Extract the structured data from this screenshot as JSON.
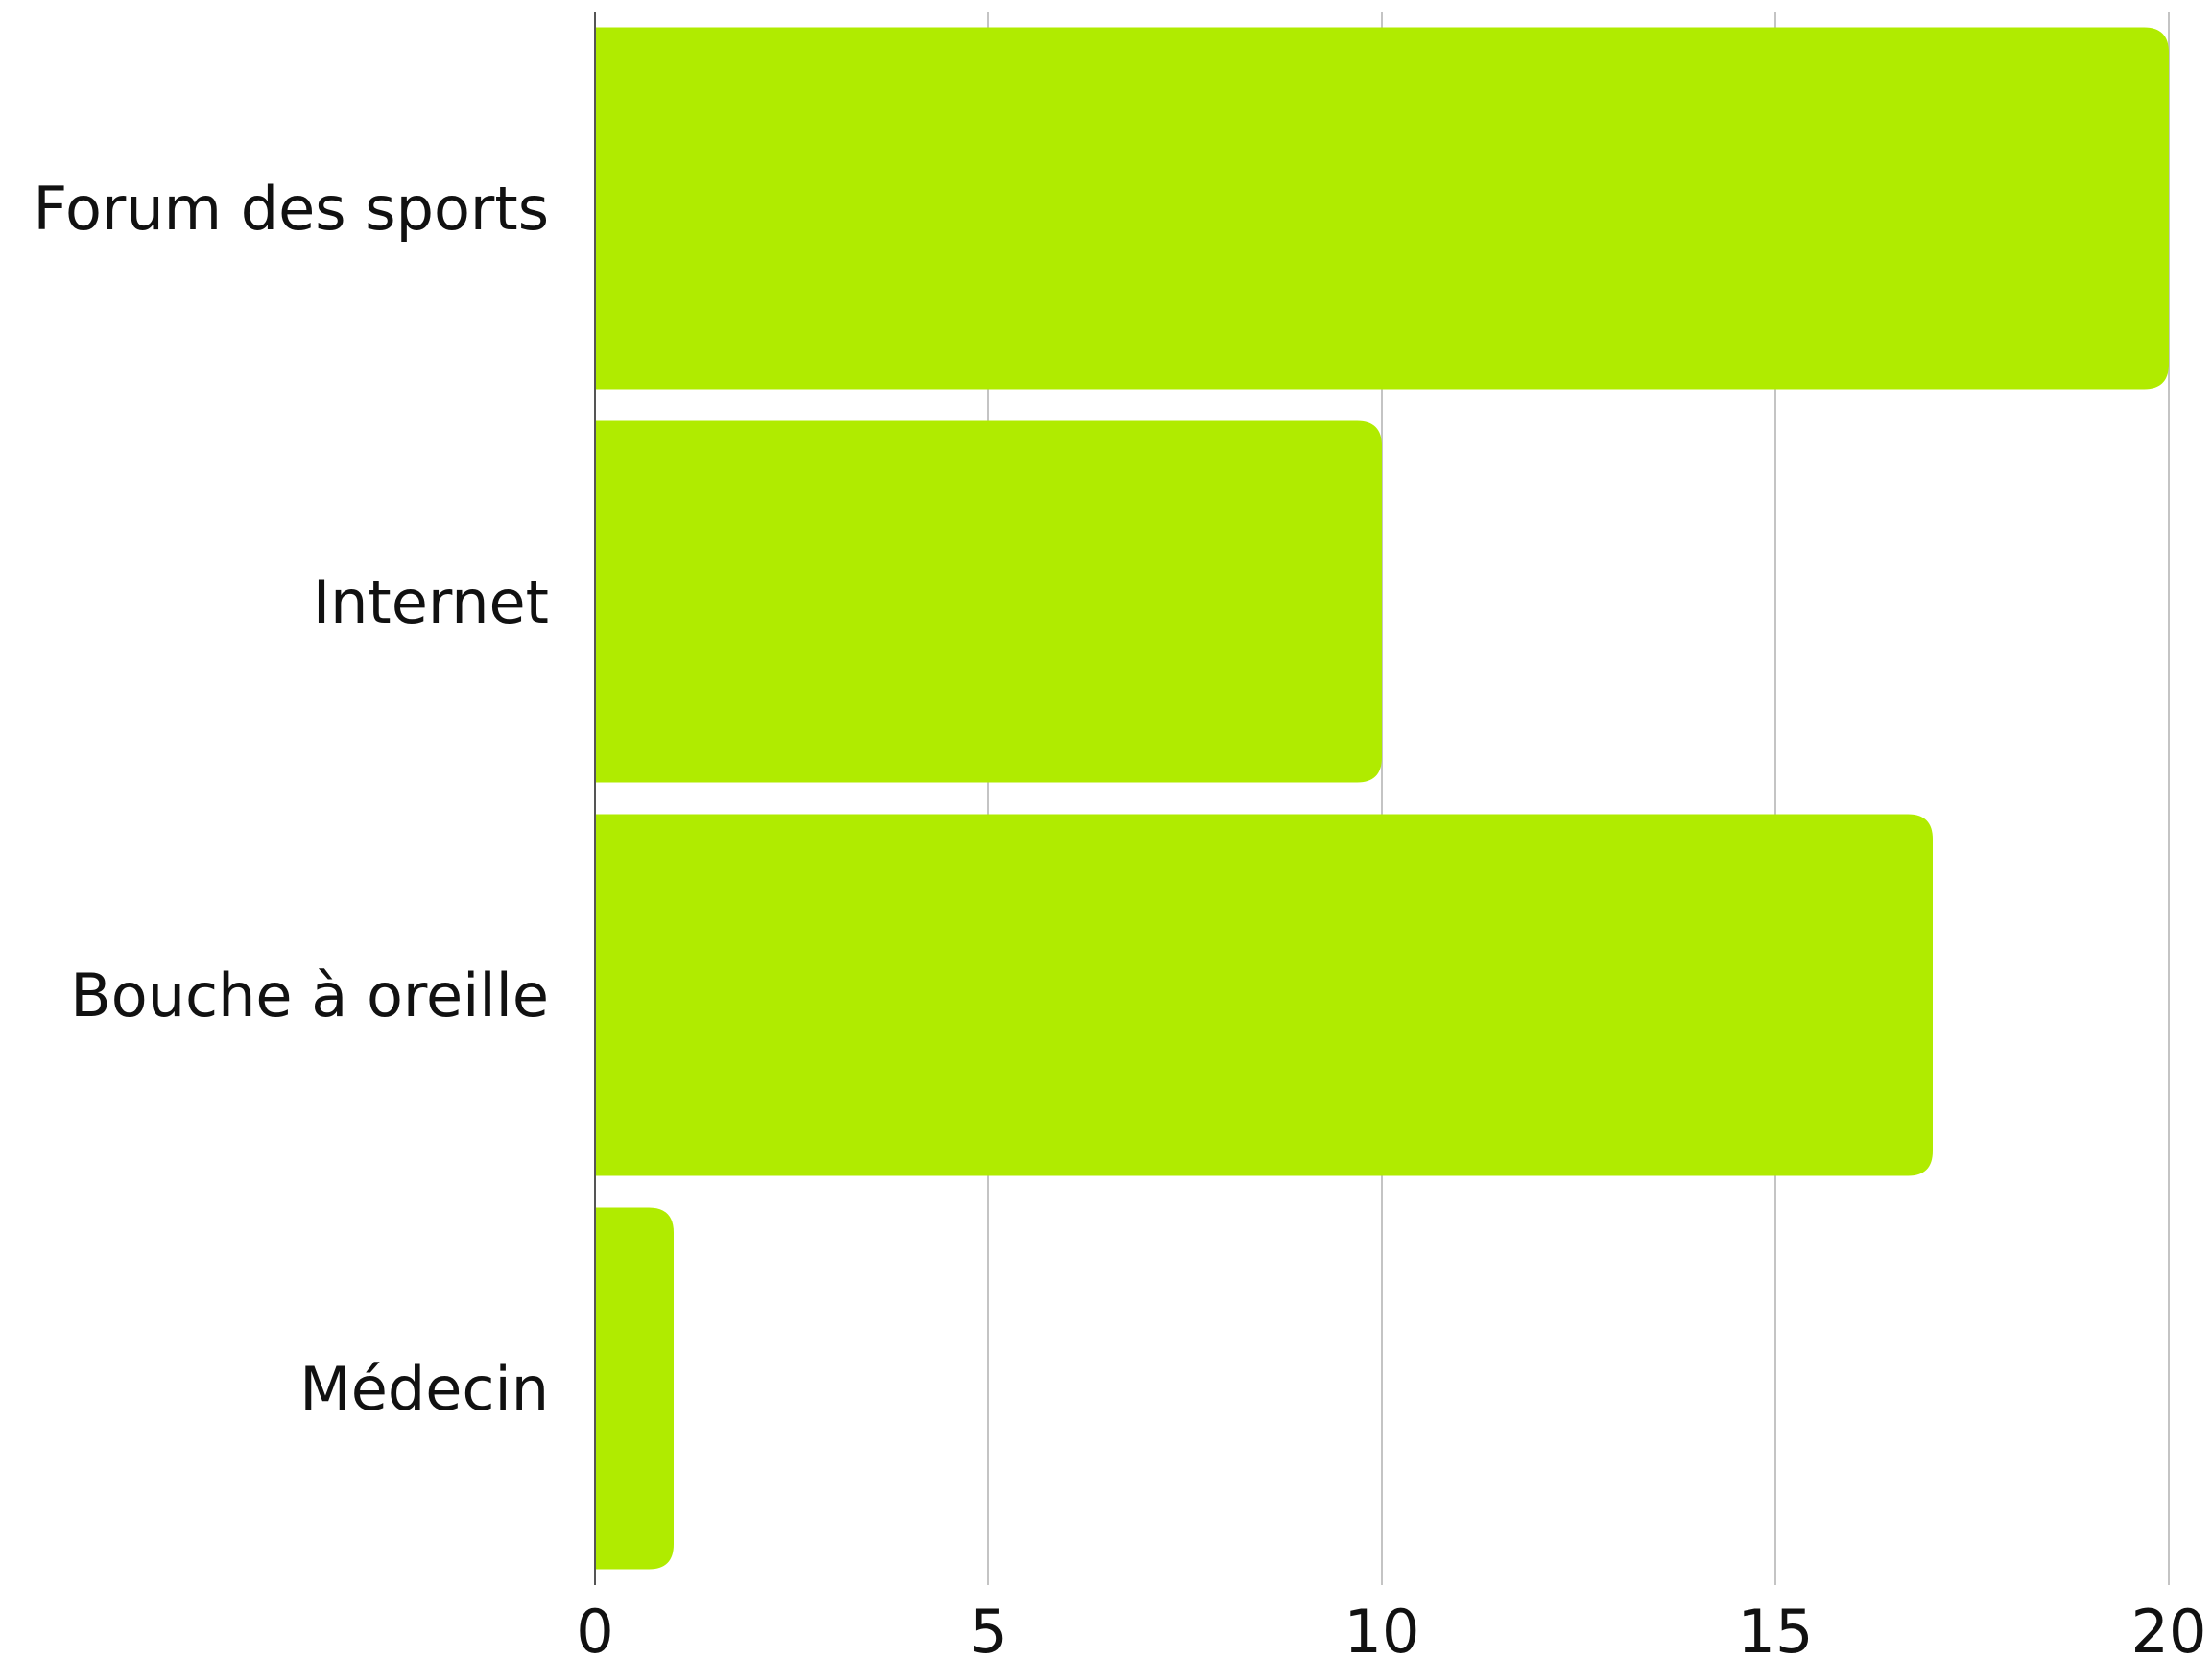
{
  "chart_data": {
    "type": "bar",
    "orientation": "horizontal",
    "categories": [
      "Forum des sports",
      "Internet",
      "Bouche à oreille",
      "Médecin"
    ],
    "values": [
      20,
      10,
      17,
      1
    ],
    "xlim": [
      0,
      20
    ],
    "xticks": [
      "0",
      "5",
      "10",
      "15",
      "20"
    ],
    "title": "",
    "xlabel": "",
    "ylabel": "",
    "bar_color": "#b0eb00",
    "grid": true,
    "legend": false
  }
}
